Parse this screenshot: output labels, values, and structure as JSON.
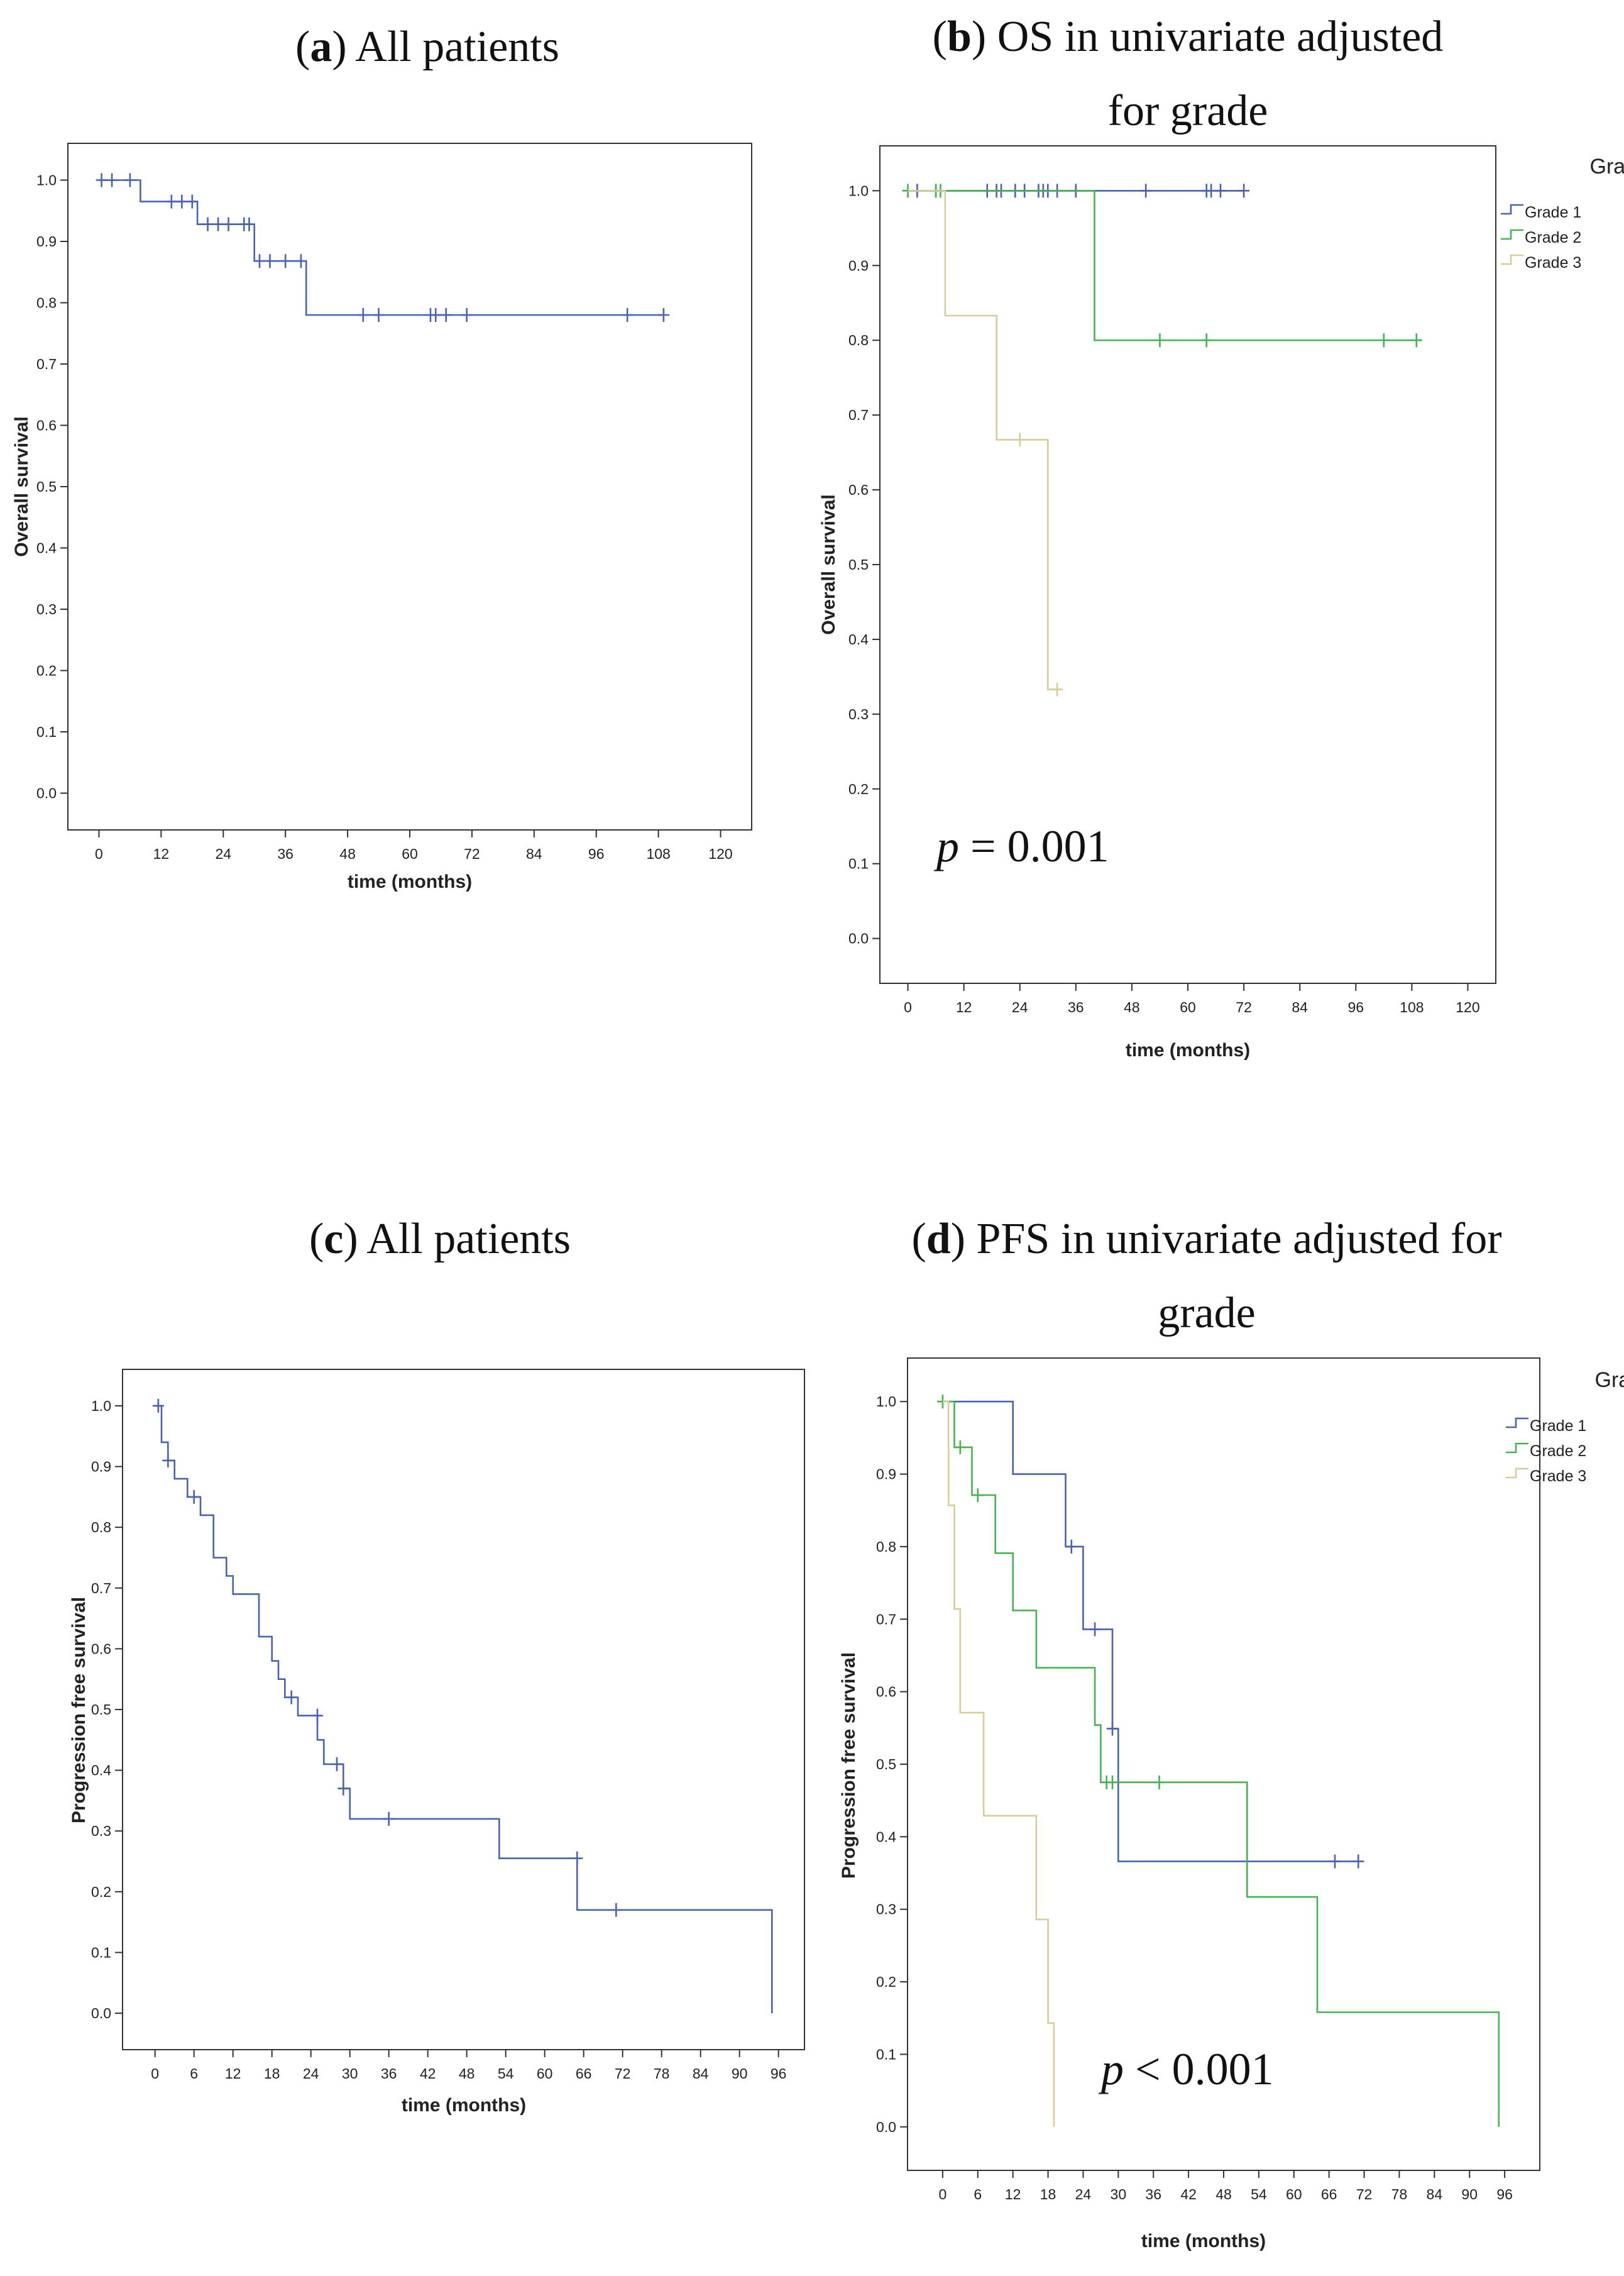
{
  "titles": {
    "a": {
      "letter": "a",
      "text": "All patients"
    },
    "b": {
      "letter": "b",
      "line1": "OS in univariate adjusted",
      "line2": "for grade"
    },
    "c": {
      "letter": "c",
      "text": "All patients"
    },
    "d": {
      "letter": "d",
      "line1": "PFS in univariate adjusted for",
      "line2": "grade"
    }
  },
  "pvalues": {
    "b": {
      "symbol": "p",
      "rest": "= 0.001"
    },
    "d": {
      "symbol": "p",
      "rest": "< 0.001"
    }
  },
  "colors": {
    "grade1": "#4a62b4",
    "grade2": "#42b550",
    "grade3": "#d8cc98",
    "all": "#4a62b4",
    "axis": "#333333"
  },
  "chart_data": [
    {
      "id": "a",
      "type": "line",
      "title": "All patients",
      "xlabel": "time (months)",
      "ylabel": "Overall survival",
      "xlim": [
        -6,
        126
      ],
      "ylim": [
        -0.06,
        1.06
      ],
      "xticks": [
        "0",
        "12",
        "24",
        "36",
        "48",
        "60",
        "72",
        "84",
        "96",
        "108",
        "120"
      ],
      "yticks": [
        "0.0",
        "0.1",
        "0.2",
        "0.3",
        "0.4",
        "0.5",
        "0.6",
        "0.7",
        "0.8",
        "0.9",
        "1.0"
      ],
      "series": [
        {
          "name": "All patients",
          "color": "#4a62b4",
          "steps": [
            [
              0,
              1.0
            ],
            [
              8,
              0.965
            ],
            [
              19,
              0.928
            ],
            [
              30,
              0.868
            ],
            [
              40,
              0.78
            ],
            [
              109,
              0.78
            ]
          ],
          "censors": [
            [
              0.5,
              1.0
            ],
            [
              2.5,
              1.0
            ],
            [
              6,
              1.0
            ],
            [
              14,
              0.965
            ],
            [
              16,
              0.965
            ],
            [
              18,
              0.965
            ],
            [
              21,
              0.928
            ],
            [
              23,
              0.928
            ],
            [
              25,
              0.928
            ],
            [
              28,
              0.928
            ],
            [
              29,
              0.928
            ],
            [
              31,
              0.868
            ],
            [
              33,
              0.868
            ],
            [
              36,
              0.868
            ],
            [
              39,
              0.868
            ],
            [
              51,
              0.78
            ],
            [
              54,
              0.78
            ],
            [
              64,
              0.78
            ],
            [
              65,
              0.78
            ],
            [
              67,
              0.78
            ],
            [
              71,
              0.78
            ],
            [
              102,
              0.78
            ],
            [
              109,
              0.78
            ]
          ]
        }
      ]
    },
    {
      "id": "b",
      "type": "line",
      "title": "OS in univariate adjusted for grade",
      "xlabel": "time (months)",
      "ylabel": "Overall survival",
      "legend_title": "Grade",
      "legend": [
        "Grade 1",
        "Grade 2",
        "Grade 3"
      ],
      "legend_position": "outside-right",
      "xlim": [
        -6,
        126
      ],
      "ylim": [
        -0.06,
        1.06
      ],
      "xticks": [
        "0",
        "12",
        "24",
        "36",
        "48",
        "60",
        "72",
        "84",
        "96",
        "108",
        "120"
      ],
      "yticks": [
        "0.0",
        "0.1",
        "0.2",
        "0.3",
        "0.4",
        "0.5",
        "0.6",
        "0.7",
        "0.8",
        "0.9",
        "1.0"
      ],
      "series": [
        {
          "name": "Grade 1",
          "color": "#4a62b4",
          "steps": [
            [
              0,
              1.0
            ],
            [
              72,
              1.0
            ]
          ],
          "censors": [
            [
              2,
              1.0
            ],
            [
              6,
              1.0
            ],
            [
              17,
              1.0
            ],
            [
              19,
              1.0
            ],
            [
              20,
              1.0
            ],
            [
              23,
              1.0
            ],
            [
              25,
              1.0
            ],
            [
              28,
              1.0
            ],
            [
              29,
              1.0
            ],
            [
              30,
              1.0
            ],
            [
              32,
              1.0
            ],
            [
              36,
              1.0
            ],
            [
              51,
              1.0
            ],
            [
              64,
              1.0
            ],
            [
              65,
              1.0
            ],
            [
              67,
              1.0
            ],
            [
              72,
              1.0
            ]
          ]
        },
        {
          "name": "Grade 2",
          "color": "#42b550",
          "steps": [
            [
              0,
              1.0
            ],
            [
              40,
              0.8
            ],
            [
              110,
              0.8
            ]
          ],
          "censors": [
            [
              0,
              1.0
            ],
            [
              6,
              1.0
            ],
            [
              7,
              1.0
            ],
            [
              54,
              0.8
            ],
            [
              64,
              0.8
            ],
            [
              102,
              0.8
            ],
            [
              109,
              0.8
            ]
          ]
        },
        {
          "name": "Grade 3",
          "color": "#d8cc98",
          "steps": [
            [
              0,
              1.0
            ],
            [
              8,
              0.833
            ],
            [
              19,
              0.667
            ],
            [
              30,
              0.333
            ],
            [
              32,
              0.333
            ]
          ],
          "censors": [
            [
              24,
              0.667
            ],
            [
              32,
              0.333
            ]
          ]
        }
      ]
    },
    {
      "id": "c",
      "type": "line",
      "title": "All patients",
      "xlabel": "time (months)",
      "ylabel": "Progression free survival",
      "xlim": [
        -5,
        100
      ],
      "ylim": [
        -0.06,
        1.06
      ],
      "xticks": [
        "0",
        "6",
        "12",
        "18",
        "24",
        "30",
        "36",
        "42",
        "48",
        "54",
        "60",
        "66",
        "72",
        "78",
        "84",
        "90",
        "96"
      ],
      "yticks": [
        "0.0",
        "0.1",
        "0.2",
        "0.3",
        "0.4",
        "0.5",
        "0.6",
        "0.7",
        "0.8",
        "0.9",
        "1.0"
      ],
      "series": [
        {
          "name": "All patients",
          "color": "#4a62b4",
          "steps": [
            [
              0,
              1.0
            ],
            [
              1,
              0.94
            ],
            [
              2,
              0.91
            ],
            [
              3,
              0.88
            ],
            [
              5,
              0.85
            ],
            [
              7,
              0.82
            ],
            [
              9,
              0.75
            ],
            [
              11,
              0.72
            ],
            [
              12,
              0.69
            ],
            [
              16,
              0.62
            ],
            [
              18,
              0.58
            ],
            [
              19,
              0.55
            ],
            [
              20,
              0.52
            ],
            [
              22,
              0.49
            ],
            [
              25,
              0.45
            ],
            [
              26,
              0.41
            ],
            [
              29,
              0.37
            ],
            [
              30,
              0.32
            ],
            [
              53,
              0.255
            ],
            [
              65,
              0.17
            ],
            [
              95,
              0.0
            ]
          ],
          "censors": [
            [
              0.5,
              1.0
            ],
            [
              2,
              0.91
            ],
            [
              6,
              0.85
            ],
            [
              21,
              0.52
            ],
            [
              25,
              0.49
            ],
            [
              28,
              0.41
            ],
            [
              29,
              0.37
            ],
            [
              36,
              0.32
            ],
            [
              65,
              0.255
            ],
            [
              71,
              0.17
            ]
          ]
        }
      ]
    },
    {
      "id": "d",
      "type": "line",
      "title": "PFS in univariate adjusted for grade",
      "xlabel": "time (months)",
      "ylabel": "Progression free survival",
      "legend_title": "Grade",
      "legend": [
        "Grade 1",
        "Grade 2",
        "Grade 3"
      ],
      "legend_position": "outside-right",
      "xlim": [
        -6,
        102
      ],
      "ylim": [
        -0.06,
        1.06
      ],
      "xticks": [
        "0",
        "6",
        "12",
        "18",
        "24",
        "30",
        "36",
        "42",
        "48",
        "54",
        "60",
        "66",
        "72",
        "78",
        "84",
        "90",
        "96"
      ],
      "yticks": [
        "0.0",
        "0.1",
        "0.2",
        "0.3",
        "0.4",
        "0.5",
        "0.6",
        "0.7",
        "0.8",
        "0.9",
        "1.0"
      ],
      "series": [
        {
          "name": "Grade 1",
          "color": "#4a62b4",
          "steps": [
            [
              0,
              1.0
            ],
            [
              12,
              0.9
            ],
            [
              21,
              0.8
            ],
            [
              24,
              0.686
            ],
            [
              29,
              0.549
            ],
            [
              30,
              0.366
            ],
            [
              71,
              0.366
            ]
          ],
          "censors": [
            [
              22,
              0.8
            ],
            [
              26,
              0.686
            ],
            [
              29,
              0.549
            ],
            [
              67,
              0.366
            ],
            [
              71,
              0.366
            ]
          ]
        },
        {
          "name": "Grade 2",
          "color": "#42b550",
          "steps": [
            [
              0,
              1.0
            ],
            [
              2,
              0.937
            ],
            [
              5,
              0.871
            ],
            [
              9,
              0.791
            ],
            [
              12,
              0.712
            ],
            [
              16,
              0.633
            ],
            [
              26,
              0.554
            ],
            [
              27,
              0.475
            ],
            [
              52,
              0.317
            ],
            [
              64,
              0.158
            ],
            [
              95,
              0.0
            ]
          ],
          "censors": [
            [
              0,
              1.0
            ],
            [
              3,
              0.937
            ],
            [
              6,
              0.871
            ],
            [
              28,
              0.475
            ],
            [
              29,
              0.475
            ],
            [
              37,
              0.475
            ]
          ]
        },
        {
          "name": "Grade 3",
          "color": "#d8cc98",
          "steps": [
            [
              0,
              1.0
            ],
            [
              1,
              0.857
            ],
            [
              2,
              0.714
            ],
            [
              3,
              0.571
            ],
            [
              7,
              0.429
            ],
            [
              16,
              0.286
            ],
            [
              18,
              0.143
            ],
            [
              19,
              0.0
            ]
          ],
          "censors": []
        }
      ]
    }
  ]
}
